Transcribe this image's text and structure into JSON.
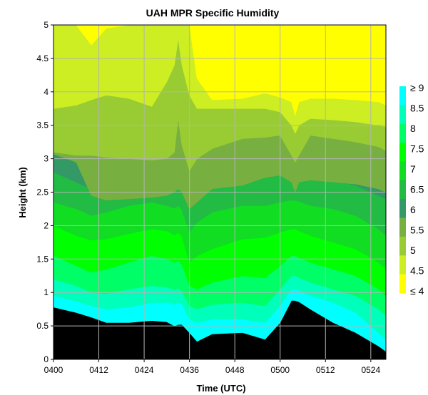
{
  "chart_data": {
    "type": "heatmap",
    "subtype": "filled-contour",
    "title": "UAH MPR Specific Humidity",
    "xlabel": "Time (UTC)",
    "ylabel": "Height (km)",
    "x_ticks": [
      "0400",
      "0412",
      "0424",
      "0436",
      "0448",
      "0500",
      "0512",
      "0524"
    ],
    "x_range_minutes": [
      0,
      88
    ],
    "y_ticks": [
      "0",
      "0.5",
      "1",
      "1.5",
      "2",
      "2.5",
      "3",
      "3.5",
      "4",
      "4.5",
      "5"
    ],
    "ylim": [
      0,
      5
    ],
    "grid": true,
    "legend_position": "right",
    "legend_labels": [
      "≥ 9",
      "8.5",
      "8",
      "7.5",
      "7",
      "6.5",
      "6",
      "5.5",
      "5",
      "4.5",
      "≤ 4"
    ],
    "contour_levels": [
      4,
      4.5,
      5,
      5.5,
      6,
      6.5,
      7,
      7.5,
      8,
      8.5,
      9
    ],
    "band_colors": [
      "#ffff00",
      "#ccee22",
      "#99cc33",
      "#77b040",
      "#339966",
      "#22bb44",
      "#11dd22",
      "#00ff00",
      "#00ff66",
      "#00ffbb",
      "#00ffff"
    ],
    "sample_minutes": [
      0,
      6,
      10,
      14,
      20,
      26,
      30,
      32,
      33,
      34,
      36,
      38,
      42,
      50,
      56,
      60,
      63,
      64,
      65,
      68,
      74,
      80,
      86,
      88
    ],
    "boundaries_km": [
      [
        0.78,
        0.7,
        0.63,
        0.55,
        0.55,
        0.58,
        0.56,
        0.5,
        0.52,
        0.52,
        0.4,
        0.27,
        0.38,
        0.4,
        0.3,
        0.55,
        0.88,
        0.88,
        0.86,
        0.75,
        0.55,
        0.4,
        0.2,
        0.12
      ],
      [
        0.95,
        0.87,
        0.8,
        0.75,
        0.78,
        0.85,
        0.85,
        0.82,
        0.85,
        0.83,
        0.6,
        0.55,
        0.6,
        0.6,
        0.55,
        0.8,
        1.05,
        1.05,
        1.03,
        0.95,
        0.85,
        0.7,
        0.4,
        0.3
      ],
      [
        1.2,
        1.1,
        1.0,
        0.98,
        1.05,
        1.1,
        1.08,
        1.04,
        1.06,
        1.02,
        0.8,
        0.75,
        0.82,
        0.85,
        0.8,
        1.05,
        1.25,
        1.25,
        1.22,
        1.15,
        1.05,
        0.95,
        0.75,
        0.65
      ],
      [
        1.55,
        1.4,
        1.3,
        1.35,
        1.45,
        1.55,
        1.5,
        1.45,
        1.48,
        1.42,
        1.1,
        1.05,
        1.15,
        1.25,
        1.22,
        1.4,
        1.55,
        1.55,
        1.52,
        1.45,
        1.35,
        1.25,
        1.05,
        0.95
      ],
      [
        2.0,
        1.85,
        1.78,
        1.8,
        1.88,
        1.95,
        1.92,
        1.86,
        1.9,
        1.84,
        1.45,
        1.55,
        1.65,
        1.8,
        1.82,
        1.9,
        1.95,
        1.95,
        1.92,
        1.85,
        1.75,
        1.65,
        1.45,
        1.35
      ],
      [
        2.35,
        2.25,
        2.15,
        2.2,
        2.3,
        2.35,
        2.3,
        2.26,
        2.3,
        2.24,
        1.9,
        2.05,
        2.2,
        2.3,
        2.3,
        2.35,
        2.38,
        2.38,
        2.36,
        2.3,
        2.25,
        2.15,
        1.95,
        1.85
      ],
      [
        2.8,
        2.65,
        2.55,
        2.55,
        2.62,
        2.7,
        2.68,
        2.65,
        2.7,
        2.62,
        2.4,
        2.55,
        2.65,
        2.75,
        2.78,
        2.8,
        2.8,
        2.8,
        2.78,
        2.72,
        2.68,
        2.6,
        2.45,
        2.4
      ],
      [
        3.07,
        2.95,
        2.45,
        2.38,
        2.4,
        2.42,
        2.45,
        2.5,
        2.55,
        2.5,
        2.25,
        2.35,
        2.55,
        2.6,
        2.72,
        2.75,
        2.65,
        2.5,
        2.65,
        2.68,
        2.65,
        2.62,
        2.55,
        2.5
      ],
      [
        3.1,
        3.05,
        3.05,
        3.02,
        3.0,
        2.98,
        3.0,
        3.1,
        3.6,
        3.2,
        2.82,
        3.0,
        3.15,
        3.3,
        3.32,
        3.35,
        3.05,
        2.95,
        3.05,
        3.35,
        3.3,
        3.25,
        3.18,
        3.12
      ],
      [
        3.75,
        3.8,
        3.88,
        3.95,
        3.9,
        3.78,
        4.15,
        4.4,
        4.8,
        4.4,
        3.95,
        3.75,
        3.75,
        3.75,
        3.75,
        3.7,
        3.5,
        3.38,
        3.5,
        3.6,
        3.58,
        3.55,
        3.5,
        3.48
      ],
      [
        5.0,
        5.0,
        4.7,
        4.95,
        5.0,
        5.0,
        5.0,
        5.0,
        5.0,
        5.0,
        5.0,
        4.2,
        3.88,
        3.9,
        3.98,
        3.92,
        3.85,
        3.65,
        3.85,
        3.9,
        3.9,
        3.88,
        3.85,
        3.8
      ]
    ]
  }
}
